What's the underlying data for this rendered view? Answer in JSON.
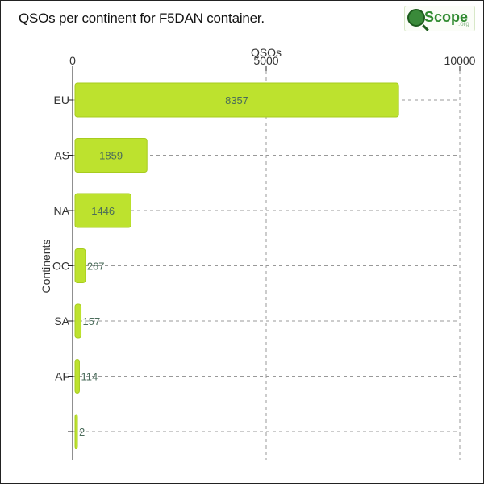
{
  "header": {
    "title": "QSOs per continent for F5DAN container.",
    "logo_text": "Scope",
    "logo_sub": ".org"
  },
  "colors": {
    "bar": "#bde22e",
    "bar_stroke": "#a7cc1f",
    "grid": "#999999",
    "axis": "#222222"
  },
  "chart_data": {
    "type": "bar",
    "orientation": "horizontal",
    "title": "QSOs per continent for F5DAN container.",
    "xlabel": "QSOs",
    "ylabel": "Continents",
    "categories": [
      "EU",
      "AS",
      "NA",
      "OC",
      "SA",
      "AF",
      ""
    ],
    "values": [
      8357,
      1859,
      1446,
      267,
      157,
      114,
      2
    ],
    "value_labels": [
      "8357",
      "1859",
      "1446",
      "267",
      "157",
      "114",
      "2"
    ],
    "xlim": [
      0,
      10000
    ],
    "xticks": [
      0,
      5000,
      10000
    ],
    "xtick_labels": [
      "0",
      "5000",
      "10000"
    ],
    "x_axis_position": "top",
    "grid": true
  }
}
